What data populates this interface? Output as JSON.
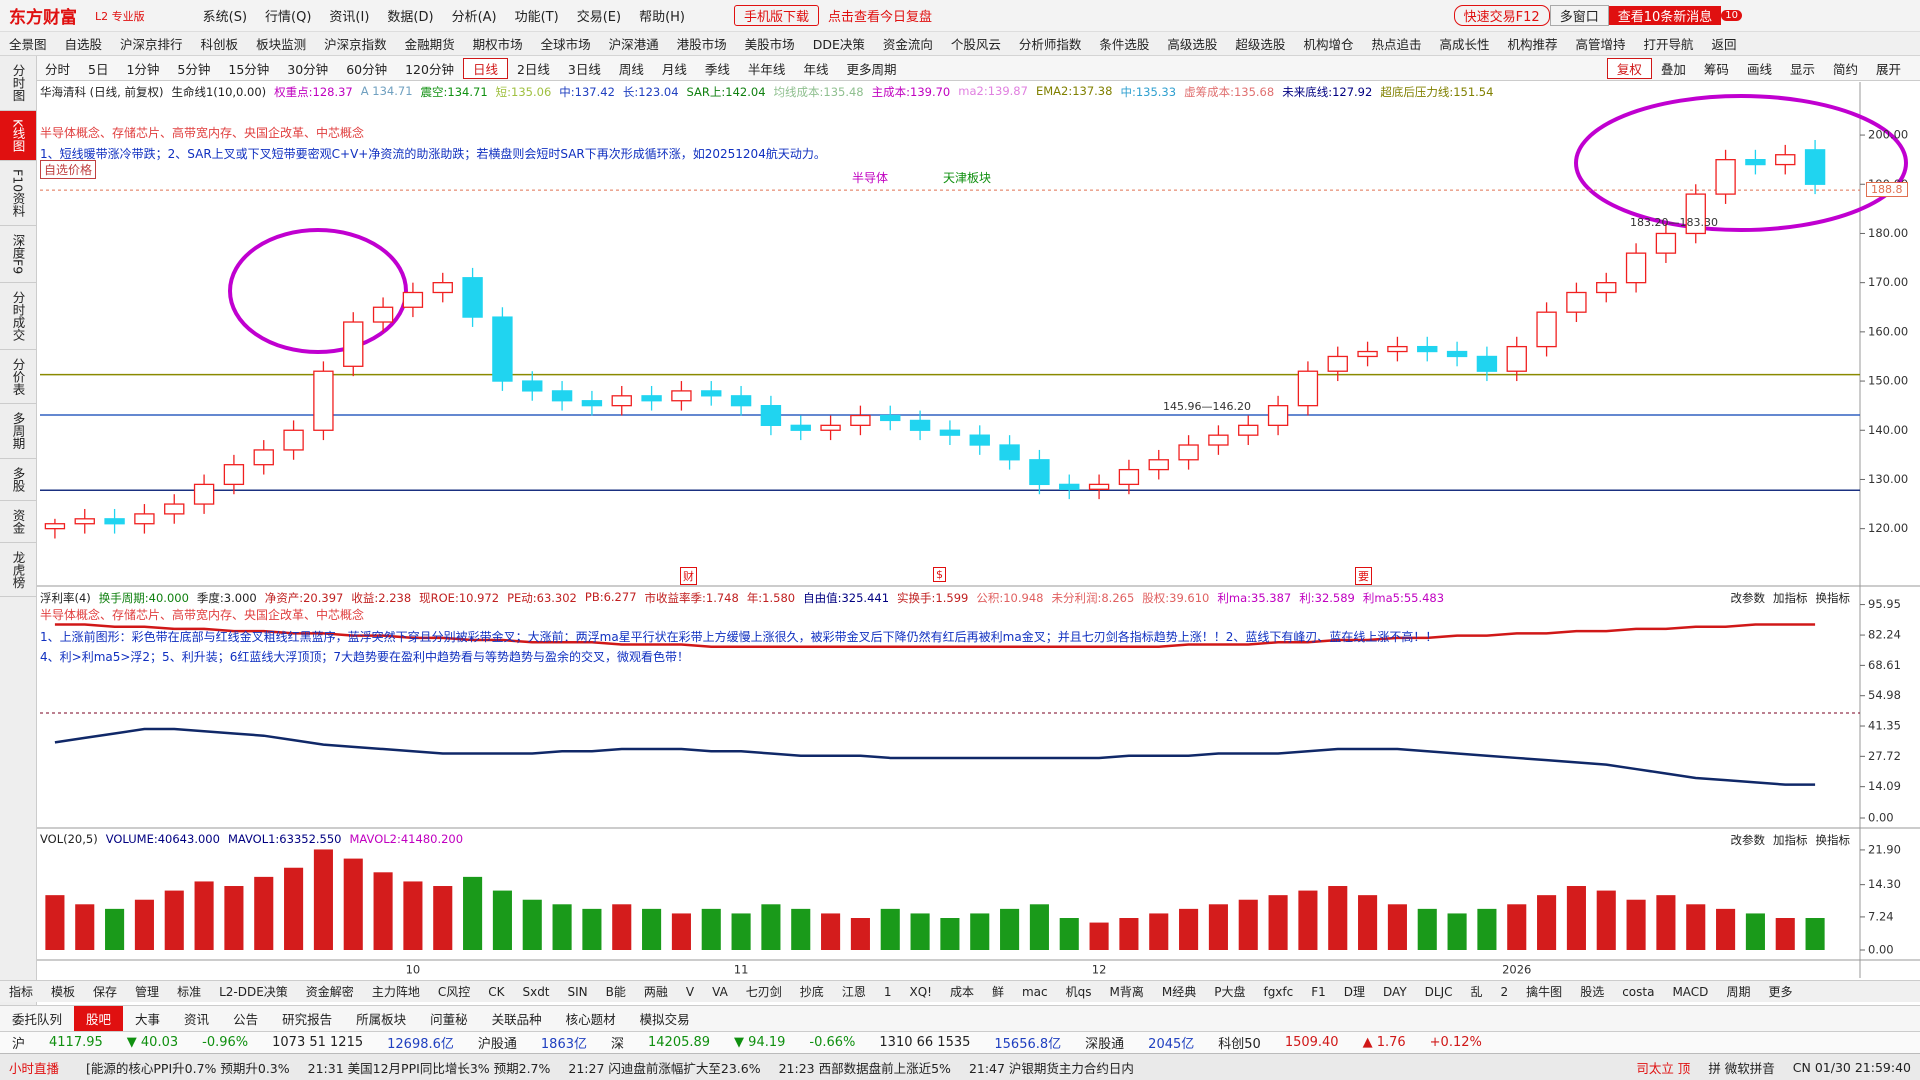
{
  "app": {
    "logo": "东方财富",
    "edition": "L2 专业版",
    "menu": [
      "系统(S)",
      "行情(Q)",
      "资讯(I)",
      "数据(D)",
      "分析(A)",
      "功能(T)",
      "交易(E)",
      "帮助(H)"
    ],
    "promo1": "手机版下载",
    "promo2": "点击查看今日复盘",
    "quick_trade": "快速交易F12",
    "multi_window": "多窗口",
    "news": "查看10条新消息",
    "badge": "10"
  },
  "nav": [
    "全景图",
    "自选股",
    "沪深京排行",
    "科创板",
    "板块监测",
    "沪深京指数",
    "金融期货",
    "期权市场",
    "全球市场",
    "沪深港通",
    "港股市场",
    "美股市场",
    "DDE决策",
    "资金流向",
    "个股风云",
    "分析师指数",
    "条件选股",
    "高级选股",
    "超级选股",
    "机构增仓",
    "热点追击",
    "高成长性",
    "机构推荐",
    "高管增持",
    "打开导航",
    "返回"
  ],
  "periods": [
    {
      "label": "分时"
    },
    {
      "label": "5日"
    },
    {
      "label": "1分钟"
    },
    {
      "label": "5分钟"
    },
    {
      "label": "15分钟"
    },
    {
      "label": "30分钟"
    },
    {
      "label": "60分钟"
    },
    {
      "label": "120分钟"
    },
    {
      "label": "日线",
      "selected": true
    },
    {
      "label": "2日线"
    },
    {
      "label": "3日线"
    },
    {
      "label": "周线"
    },
    {
      "label": "月线"
    },
    {
      "label": "季线"
    },
    {
      "label": "半年线"
    },
    {
      "label": "年线"
    },
    {
      "label": "更多周期"
    }
  ],
  "tools": [
    {
      "label": "复权",
      "selected": true
    },
    {
      "label": "叠加"
    },
    {
      "label": "筹码"
    },
    {
      "label": "画线"
    },
    {
      "label": "显示"
    },
    {
      "label": "简约"
    },
    {
      "label": "展开"
    }
  ],
  "sidebar": [
    {
      "label": "分时图"
    },
    {
      "label": "K线图",
      "selected": true
    },
    {
      "label": "F10资料"
    },
    {
      "label": "深度F9"
    },
    {
      "label": "分时成交"
    },
    {
      "label": "分价表"
    },
    {
      "label": "多周期"
    },
    {
      "label": "多股"
    },
    {
      "label": "资金"
    },
    {
      "label": "龙虎榜"
    }
  ],
  "chart_data": [
    {
      "type": "candlestick",
      "stock": "华海清科 (日线, 前复权)",
      "header": [
        {
          "text": "生命线1(10,0.00)",
          "color": "#222"
        },
        {
          "text": "权重点:128.37",
          "color": "#c000c0"
        },
        {
          "text": "A 134.71",
          "color": "#70a0c0"
        },
        {
          "text": "震空:134.71",
          "color": "#109010"
        },
        {
          "text": "短:135.06",
          "color": "#a0c040"
        },
        {
          "text": "中:137.42",
          "color": "#2040c0"
        },
        {
          "text": "长:123.04",
          "color": "#2040c0"
        },
        {
          "text": "SAR上:142.04",
          "color": "#108010"
        },
        {
          "text": "均线成本:135.48",
          "color": "#90c090"
        },
        {
          "text": "主成本:139.70",
          "color": "#c000c0"
        },
        {
          "text": "ma2:139.87",
          "color": "#e080e0"
        },
        {
          "text": "EMA2:137.38",
          "color": "#808000"
        },
        {
          "text": "中:135.33",
          "color": "#30a0d0"
        },
        {
          "text": "虚筹成本:135.68",
          "color": "#e07070"
        },
        {
          "text": "未来底线:127.92",
          "color": "#000080"
        },
        {
          "text": "超底后压力线:151.54",
          "color": "#808000"
        }
      ],
      "concepts": "半导体概念、存储芯片、高带宽内存、央国企改革、中芯概念",
      "note": "1、短线暖带涨冷带跌；2、SAR上叉或下叉短带要密观C+V+净资流的助涨助跌；若横盘则会短时SAR下再次形成循环涨，如20251204航天动力。",
      "price_button": "自选价格",
      "tag1": "半导体",
      "tag2": "天津板块",
      "range1": "183.20—183.30",
      "range2": "145.96—146.20",
      "markers": [
        "财",
        "$",
        "要"
      ],
      "up_color": "#f02020",
      "down_color": "#20d4f0",
      "ylim": [
        111.8,
        205.5
      ],
      "yticks": [
        {
          "value": 120,
          "label": "120.00"
        },
        {
          "value": 130,
          "label": "130.00"
        },
        {
          "value": 140,
          "label": "140.00"
        },
        {
          "value": 150,
          "label": "150.00"
        },
        {
          "value": 160,
          "label": "160.00"
        },
        {
          "value": 170,
          "label": "170.00"
        },
        {
          "value": 180,
          "label": "180.00"
        },
        {
          "value": 190,
          "label": "190.00"
        },
        {
          "value": 200,
          "label": "200.00"
        }
      ],
      "reference_lines": [
        {
          "value": 151.3,
          "color": "#8a8a00"
        },
        {
          "value": 143.1,
          "color": "#3060c0"
        },
        {
          "value": 127.8,
          "color": "#1a3080"
        },
        {
          "value": 188.8,
          "color": "#e07050",
          "dash": true
        }
      ],
      "open": [
        120,
        121,
        122,
        121,
        123,
        125,
        129,
        133,
        136,
        140,
        153,
        162,
        165,
        168,
        171,
        163,
        150,
        148,
        146,
        145,
        147,
        146,
        148,
        147,
        145,
        141,
        140,
        141,
        143,
        142,
        140,
        139,
        137,
        134,
        129,
        128,
        129,
        132,
        134,
        137,
        139,
        141,
        145,
        152,
        155,
        156,
        157,
        156,
        155,
        152,
        157,
        164,
        168,
        170,
        176,
        180,
        188,
        195,
        194,
        197
      ],
      "high": [
        122,
        124,
        124,
        125,
        127,
        131,
        135,
        138,
        142,
        154,
        164,
        167,
        170,
        172,
        173,
        165,
        152,
        150,
        148,
        149,
        149,
        150,
        150,
        149,
        147,
        143,
        143,
        145,
        145,
        144,
        142,
        141,
        139,
        136,
        131,
        131,
        134,
        136,
        139,
        141,
        143,
        147,
        154,
        157,
        158,
        159,
        159,
        158,
        157,
        159,
        166,
        170,
        172,
        178,
        182,
        190,
        197,
        197,
        198,
        199
      ],
      "low": [
        118,
        119,
        119,
        119,
        121,
        123,
        127,
        131,
        134,
        138,
        151,
        160,
        163,
        166,
        161,
        148,
        146,
        144,
        143,
        143,
        144,
        144,
        145,
        143,
        139,
        138,
        138,
        139,
        140,
        138,
        137,
        135,
        132,
        127,
        126,
        126,
        127,
        130,
        132,
        135,
        137,
        139,
        143,
        150,
        153,
        154,
        154,
        153,
        150,
        150,
        155,
        162,
        166,
        168,
        174,
        178,
        186,
        192,
        192,
        188
      ],
      "close": [
        121,
        122,
        121,
        123,
        125,
        129,
        133,
        136,
        140,
        152,
        162,
        165,
        168,
        170,
        163,
        150,
        148,
        146,
        145,
        147,
        146,
        148,
        147,
        145,
        141,
        140,
        141,
        143,
        142,
        140,
        139,
        137,
        134,
        129,
        128,
        129,
        132,
        134,
        137,
        139,
        141,
        145,
        152,
        155,
        156,
        157,
        156,
        155,
        152,
        157,
        164,
        168,
        170,
        176,
        180,
        188,
        195,
        194,
        196,
        190
      ]
    },
    {
      "type": "line",
      "title": "浮利率(4)",
      "header": [
        {
          "text": "换手周期:40.000",
          "color": "#108010"
        },
        {
          "text": "季度:3.000",
          "color": "#222"
        },
        {
          "text": "净资产:20.397",
          "color": "#c02020"
        },
        {
          "text": "收益:2.238",
          "color": "#c02020"
        },
        {
          "text": "现ROE:10.972",
          "color": "#c02020"
        },
        {
          "text": "PE动:63.302",
          "color": "#c02020"
        },
        {
          "text": "PB:6.277",
          "color": "#c02020"
        },
        {
          "text": "市收益率季:1.748",
          "color": "#c02020"
        },
        {
          "text": "年:1.580",
          "color": "#c02020"
        },
        {
          "text": "自由值:325.441",
          "color": "#000080"
        },
        {
          "text": "实换手:1.599",
          "color": "#c02020"
        },
        {
          "text": "公积:10.948",
          "color": "#e06060"
        },
        {
          "text": "未分利润:8.265",
          "color": "#e06060"
        },
        {
          "text": "股权:39.610",
          "color": "#e06060"
        },
        {
          "text": "利ma:35.387",
          "color": "#c000c0"
        },
        {
          "text": "利:32.589",
          "color": "#c000c0"
        },
        {
          "text": "利ma5:55.483",
          "color": "#c000c0"
        }
      ],
      "actions": [
        "改参数",
        "加指标",
        "换指标"
      ],
      "concepts": "半导体概念、存储芯片、高带宽内存、央国企改革、中芯概念",
      "note1": "1、上涨前图形：彩色带在底部与红线金叉粗线红黑蓝序，蓝浮突然下穿且分别被彩带金叉；大涨前：两浮ma星平行状在彩带上方缓慢上涨很久，被彩带金叉后下降仍然有红后再被利ma金叉；并且七刃剑各指标趋势上涨！！2、蓝线下有峰刃、蓝在线上涨不高！！",
      "note2": "4、利>利ma5>浮2；5、利升装；6红蓝线大浮顶顶；7大趋势要在盈利中趋势看与等势趋势与盈余的交叉，微观看色带！",
      "ylim": [
        0,
        98
      ],
      "yticks": [
        95.95,
        82.24,
        68.61,
        54.98,
        41.35,
        27.72,
        14.09,
        {
          "value": 0,
          "label": "0.00"
        }
      ],
      "reference_lines": [
        {
          "value": 47.2,
          "color": "#7a0020",
          "dash": true
        }
      ],
      "series": [
        {
          "color": "#d01818",
          "values": [
            87,
            87,
            86,
            86,
            85,
            85,
            84,
            84,
            83,
            83,
            82,
            82,
            81,
            81,
            80,
            80,
            79,
            79,
            79,
            78,
            78,
            78,
            77,
            77,
            77,
            77,
            77,
            77,
            77,
            77,
            77,
            77,
            77,
            77,
            77,
            77,
            77,
            77,
            78,
            78,
            78,
            79,
            79,
            80,
            80,
            81,
            81,
            82,
            82,
            83,
            83,
            84,
            84,
            85,
            85,
            86,
            86,
            87,
            87,
            87
          ]
        },
        {
          "color": "#102868",
          "values": [
            34,
            36,
            38,
            40,
            40,
            39,
            38,
            37,
            35,
            33,
            32,
            31,
            30,
            29,
            29,
            29,
            29,
            30,
            30,
            31,
            31,
            31,
            30,
            30,
            29,
            28,
            28,
            28,
            27,
            27,
            27,
            27,
            27,
            27,
            27,
            27,
            28,
            28,
            28,
            29,
            29,
            29,
            30,
            31,
            31,
            31,
            30,
            29,
            28,
            27,
            26,
            25,
            24,
            22,
            20,
            18,
            17,
            16,
            15,
            15
          ]
        }
      ]
    },
    {
      "type": "bar",
      "title": "VOL(20,5)",
      "header": [
        {
          "text": "VOLUME:40643.000",
          "color": "#000080"
        },
        {
          "text": "MAVOL1:63352.550",
          "color": "#000080"
        },
        {
          "text": "MAVOL2:41480.200",
          "color": "#c000c0"
        }
      ],
      "actions": [
        "改参数",
        "加指标",
        "换指标"
      ],
      "up_color": "#d41c1c",
      "down_color": "#1a9a1a",
      "ylim": [
        0,
        25.6
      ],
      "yticks": [
        {
          "value": 21.9,
          "label": "21.90"
        },
        {
          "value": 14.3,
          "label": "14.30"
        },
        7.24,
        {
          "value": 0,
          "label": "0.00"
        }
      ],
      "categories": [
        null,
        null,
        null,
        null,
        null,
        null,
        null,
        null,
        null,
        null,
        null,
        null,
        "10",
        null,
        null,
        null,
        null,
        null,
        null,
        null,
        null,
        null,
        null,
        "11",
        null,
        null,
        null,
        null,
        null,
        null,
        null,
        null,
        null,
        null,
        null,
        "12",
        null,
        null,
        null,
        null,
        null,
        null,
        null,
        null,
        null,
        null,
        null,
        null,
        null,
        "2026",
        null,
        null,
        null,
        null,
        null,
        null,
        null,
        null,
        null,
        null
      ],
      "values": [
        12,
        10,
        9,
        11,
        13,
        15,
        14,
        16,
        18,
        22,
        20,
        17,
        15,
        14,
        16,
        13,
        11,
        10,
        9,
        10,
        9,
        8,
        9,
        8,
        10,
        9,
        8,
        7,
        9,
        8,
        7,
        8,
        9,
        10,
        7,
        6,
        7,
        8,
        9,
        10,
        11,
        12,
        13,
        14,
        12,
        10,
        9,
        8,
        9,
        10,
        12,
        14,
        13,
        11,
        12,
        10,
        9,
        8,
        7,
        7
      ]
    }
  ],
  "toolbar": [
    "指标",
    "模板",
    "保存",
    "管理",
    "标准",
    "L2-DDE决策",
    "资金解密",
    "主力阵地",
    "C风控",
    "CK",
    "Sxdt",
    "SIN",
    "B能",
    "两融",
    "V",
    "VA",
    "七刃剑",
    "抄底",
    "江恩",
    "1",
    "XQ!",
    "成本",
    "鲜",
    "mac",
    "机qs",
    "M背离",
    "M经典",
    "P大盘",
    "fgxfc",
    "F1",
    "D理",
    "DAY",
    "DLJC",
    "乱",
    "2",
    "擒牛图",
    "股选",
    "costa",
    "MACD",
    "周期",
    "更多"
  ],
  "tabs": [
    {
      "label": "委托队列"
    },
    {
      "label": "股吧",
      "selected": true
    },
    {
      "label": "大事"
    },
    {
      "label": "资讯"
    },
    {
      "label": "公告"
    },
    {
      "label": "研究报告"
    },
    {
      "label": "所属板块"
    },
    {
      "label": "问董秘"
    },
    {
      "label": "关联品种"
    },
    {
      "label": "核心题材"
    },
    {
      "label": "模拟交易"
    }
  ],
  "ticker": [
    {
      "text": "沪",
      "color": "#222"
    },
    {
      "text": "4117.95",
      "color": "#109010"
    },
    {
      "text": "▼ 40.03",
      "color": "#109010"
    },
    {
      "text": "-0.96%",
      "color": "#109010"
    },
    {
      "text": "1073 51 1215",
      "color": "#222"
    },
    {
      "text": "12698.6亿",
      "color": "#2040c0"
    },
    {
      "text": "沪股通",
      "color": "#222"
    },
    {
      "text": "1863亿",
      "color": "#2040c0"
    },
    {
      "text": "深",
      "color": "#222"
    },
    {
      "text": "14205.89",
      "color": "#109010"
    },
    {
      "text": "▼ 94.19",
      "color": "#109010"
    },
    {
      "text": "-0.66%",
      "color": "#109010"
    },
    {
      "text": "1310 66 1535",
      "color": "#222"
    },
    {
      "text": "15656.8亿",
      "color": "#2040c0"
    },
    {
      "text": "深股通",
      "color": "#222"
    },
    {
      "text": "2045亿",
      "color": "#2040c0"
    },
    {
      "text": "科创50",
      "color": "#222"
    },
    {
      "text": "1509.40",
      "color": "#d01818"
    },
    {
      "text": "▲ 1.76",
      "color": "#d01818"
    },
    {
      "text": "+0.12%",
      "color": "#d01818"
    }
  ],
  "status": {
    "live": "小时直播",
    "news": [
      "[能源的核心PPI升0.7% 预期升0.3%",
      "21:31 美国12月PPI同比增长3% 预期2.7%",
      "21:27 闪迪盘前涨幅扩大至23.6%",
      "21:23 西部数据盘前上涨近5%",
      "21:47 沪银期货主力合约日内"
    ],
    "stock": "司太立 顶",
    "ime": "拼 微软拼音",
    "clock": "CN 01/30 21:59:40"
  }
}
